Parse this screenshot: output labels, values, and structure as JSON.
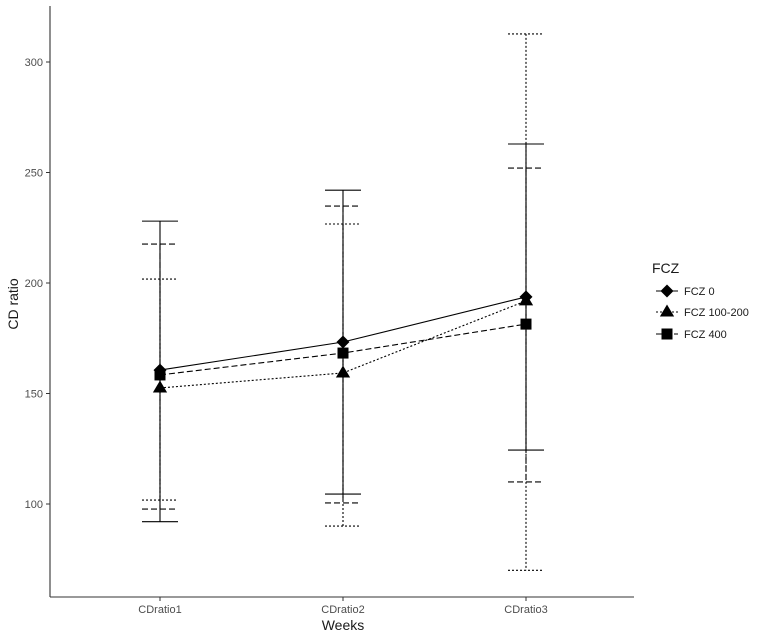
{
  "chart_data": {
    "type": "line",
    "title": "",
    "xlabel": "Weeks",
    "ylabel": "CD ratio",
    "categories": [
      "CDratio1",
      "CDratio2",
      "CDratio3"
    ],
    "ylim": [
      62,
      322
    ],
    "yticks": [
      100,
      150,
      200,
      250,
      300
    ],
    "grid": false,
    "legend": {
      "title": "FCZ",
      "position": "right"
    },
    "series": [
      {
        "name": "FCZ 0",
        "shape": "diamond",
        "linetype": "solid",
        "values": [
          160.6,
          173.3,
          193.7
        ],
        "error_upper": [
          228.0,
          242.0,
          262.9
        ],
        "error_lower": [
          92.0,
          104.5,
          124.4
        ]
      },
      {
        "name": "FCZ 100-200",
        "shape": "triangle",
        "linetype": "dotted",
        "values": [
          152.5,
          159.3,
          191.9
        ],
        "error_upper": [
          201.8,
          226.7,
          312.7
        ],
        "error_lower": [
          101.8,
          90.0,
          70.0
        ]
      },
      {
        "name": "FCZ 400",
        "shape": "square",
        "linetype": "dashed",
        "values": [
          158.4,
          168.3,
          181.4
        ],
        "error_upper": [
          217.6,
          234.8,
          252.0
        ],
        "error_lower": [
          97.7,
          100.5,
          110.0
        ]
      }
    ]
  },
  "colors": {
    "axis": "#333333",
    "tick_text": "#4d4d4d",
    "series": "#000000"
  }
}
